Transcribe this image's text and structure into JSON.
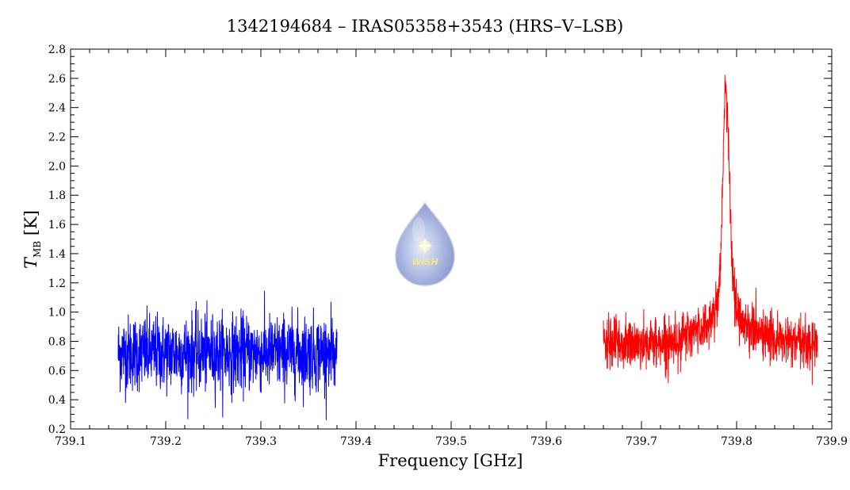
{
  "chart_data": {
    "type": "line",
    "title": "1342194684 – IRAS05358+3543 (HRS–V–LSB)",
    "xlabel": "Frequency [GHz]",
    "ylabel_main": "T",
    "ylabel_sub": "MB",
    "ylabel_unit": " [K]",
    "xlim": [
      739.1,
      739.9
    ],
    "ylim": [
      0.2,
      2.8
    ],
    "x_ticks": [
      "739.1",
      "739.2",
      "739.3",
      "739.4",
      "739.5",
      "739.6",
      "739.7",
      "739.8",
      "739.9"
    ],
    "y_ticks": [
      "0.2",
      "0.4",
      "0.6",
      "0.8",
      "1.0",
      "1.2",
      "1.4",
      "1.6",
      "1.8",
      "2.0",
      "2.2",
      "2.4",
      "2.6",
      "2.8"
    ],
    "series": [
      {
        "color": "#0000ff",
        "x_range": [
          739.15,
          739.38
        ],
        "baseline": 0.72,
        "min": 0.24,
        "max": 1.18
      },
      {
        "color": "#ff0000",
        "x_range": [
          739.66,
          739.885
        ],
        "baseline": 0.78,
        "line_center": 739.789,
        "peak": 2.56,
        "min": 0.33
      }
    ],
    "logo_text": "WISH"
  }
}
